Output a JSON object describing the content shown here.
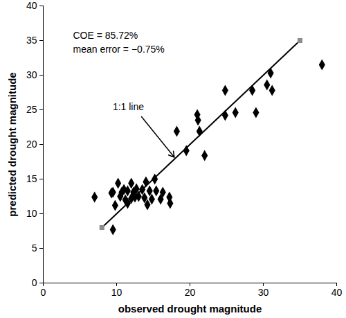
{
  "chart_data": {
    "type": "scatter",
    "xlabel": "observed drought magnitude",
    "ylabel": "predicted drought magnitude",
    "xlim": [
      0,
      40
    ],
    "ylim": [
      0,
      40
    ],
    "xticks": [
      0,
      10,
      20,
      30,
      40
    ],
    "yticks": [
      0,
      5,
      10,
      15,
      20,
      25,
      30,
      35,
      40
    ],
    "grid": false,
    "annotations": [
      "COE = 85.72%",
      "mean error = −0.75%",
      "1:1 line"
    ],
    "series": [
      {
        "type": "scatter",
        "marker": "diamond",
        "color": "#000000",
        "x": [
          7,
          9.3,
          9.5,
          9.5,
          9.8,
          10.2,
          10.5,
          10.7,
          11,
          11.2,
          11.5,
          11.5,
          12,
          12,
          12.3,
          12.5,
          12.7,
          13,
          13.5,
          13.8,
          14,
          14.2,
          14.5,
          14.8,
          15.2,
          15.4,
          16,
          16.3,
          17.2,
          17.3,
          18.2,
          19.5,
          21,
          21.1,
          21.3,
          22,
          24.8,
          24.8,
          26.2,
          28.5,
          29,
          30.5,
          31,
          31.2,
          38
        ],
        "values": [
          12.4,
          13,
          13.1,
          7.7,
          11.2,
          14.4,
          12.5,
          13.1,
          13.5,
          12,
          11.5,
          13.3,
          14.4,
          12.2,
          13.1,
          12.4,
          13.6,
          12.5,
          13.5,
          12.3,
          14.6,
          11.3,
          13.3,
          12.1,
          15,
          13.3,
          12.1,
          13.1,
          12.4,
          11.5,
          21.9,
          19.1,
          24.3,
          23.5,
          21.9,
          18.4,
          27.8,
          24.2,
          24.6,
          27.8,
          24.6,
          28.6,
          30.3,
          27.8,
          31.5
        ]
      },
      {
        "type": "line",
        "line_style": "solid",
        "color": "#000000",
        "x": [
          8,
          35
        ],
        "values": [
          8,
          35
        ]
      },
      {
        "type": "scatter",
        "marker": "square",
        "color": "#8c8c8c",
        "x": [
          8,
          35
        ],
        "values": [
          8,
          35
        ]
      }
    ]
  }
}
